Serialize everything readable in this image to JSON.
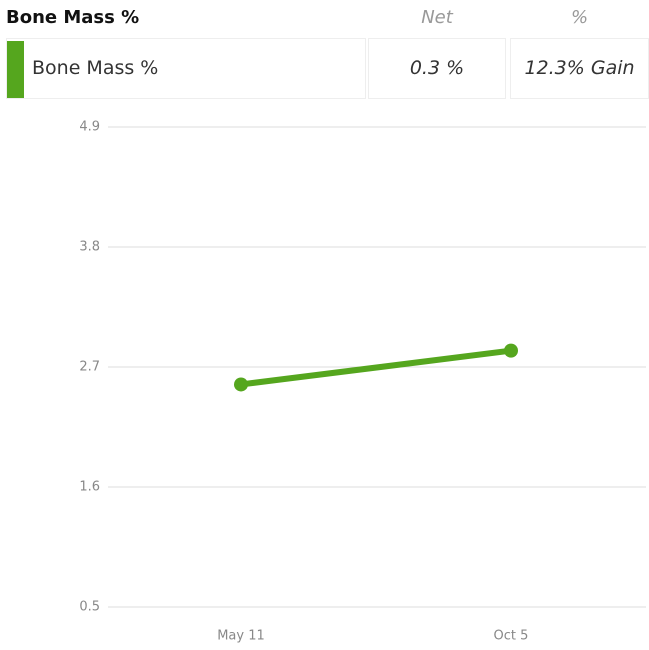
{
  "table": {
    "header": [
      "Bone Mass %",
      "Net",
      "%"
    ],
    "rows": [
      [
        "Bone Mass %",
        "0.3 %",
        "12.3% Gain"
      ]
    ]
  },
  "chart_data": {
    "type": "line",
    "categories": [
      "May 11",
      "Oct 5"
    ],
    "values": [
      2.54,
      2.85
    ],
    "color": "#55a61e",
    "ylim": [
      0.5,
      4.9
    ],
    "yticks": [
      0.5,
      1.6,
      2.7,
      3.8,
      4.9
    ],
    "grid": true
  }
}
